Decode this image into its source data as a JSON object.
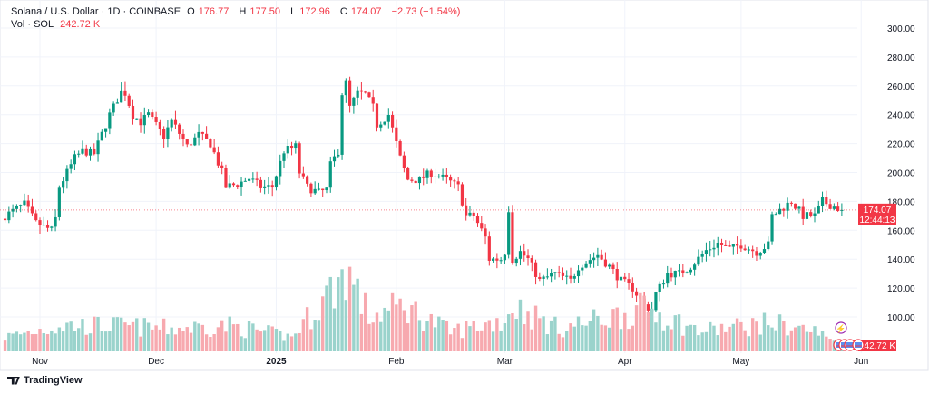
{
  "header": {
    "symbol": "Solana / U.S. Dollar · 1D · COINBASE",
    "o_label": "O",
    "o": "176.77",
    "h_label": "H",
    "h": "177.50",
    "l_label": "L",
    "l": "172.96",
    "c_label": "C",
    "c": "174.07",
    "change": "−2.73 (−1.54%)",
    "vol_label": "Vol · SOL",
    "vol": "242.72 K"
  },
  "price_tag": {
    "price": "174.07",
    "countdown": "12:44:13"
  },
  "volume_tag": "242.72 K",
  "brand": "TradingView",
  "colors": {
    "up": "#089981",
    "down": "#f23645",
    "up_vol": "#9ad3cc",
    "down_vol": "#f7a9af",
    "grid": "#f0f3fa"
  },
  "chart_data": {
    "type": "candlestick",
    "title": "Solana / U.S. Dollar · 1D · COINBASE",
    "ylim": [
      88,
      306
    ],
    "y_ticks": [
      "300.00",
      "280.00",
      "260.00",
      "240.00",
      "220.00",
      "200.00",
      "180.00",
      "160.00",
      "140.00",
      "120.00",
      "100.00"
    ],
    "x_ticks": [
      {
        "date": "2024-11-01",
        "label": "Nov"
      },
      {
        "date": "2024-12-01",
        "label": "Dec"
      },
      {
        "date": "2025-01-01",
        "label": "2025"
      },
      {
        "date": "2025-02-01",
        "label": "Feb"
      },
      {
        "date": "2025-03-01",
        "label": "Mar"
      },
      {
        "date": "2025-04-01",
        "label": "Apr"
      },
      {
        "date": "2025-05-01",
        "label": "May"
      },
      {
        "date": "2025-06-01",
        "label": "Jun"
      }
    ],
    "grid": true,
    "last_price": 174.07,
    "close_path": [
      [
        "2024-10-23",
        170
      ],
      [
        "2024-10-28",
        178
      ],
      [
        "2024-10-31",
        165
      ],
      [
        "2024-11-04",
        160
      ],
      [
        "2024-11-05",
        168
      ],
      [
        "2024-11-06",
        190
      ],
      [
        "2024-11-10",
        210
      ],
      [
        "2024-11-12",
        215
      ],
      [
        "2024-11-15",
        213
      ],
      [
        "2024-11-19",
        240
      ],
      [
        "2024-11-22",
        256
      ],
      [
        "2024-11-23",
        255
      ],
      [
        "2024-11-25",
        240
      ],
      [
        "2024-11-27",
        235
      ],
      [
        "2024-11-29",
        240
      ],
      [
        "2024-12-03",
        225
      ],
      [
        "2024-12-05",
        236
      ],
      [
        "2024-12-09",
        218
      ],
      [
        "2024-12-12",
        226
      ],
      [
        "2024-12-15",
        220
      ],
      [
        "2024-12-18",
        200
      ],
      [
        "2024-12-19",
        190
      ],
      [
        "2024-12-22",
        192
      ],
      [
        "2024-12-25",
        196
      ],
      [
        "2024-12-28",
        190
      ],
      [
        "2024-12-31",
        190
      ],
      [
        "2025-01-03",
        215
      ],
      [
        "2025-01-06",
        218
      ],
      [
        "2025-01-07",
        200
      ],
      [
        "2025-01-09",
        190
      ],
      [
        "2025-01-12",
        186
      ],
      [
        "2025-01-14",
        188
      ],
      [
        "2025-01-15",
        205
      ],
      [
        "2025-01-17",
        215
      ],
      [
        "2025-01-18",
        255
      ],
      [
        "2025-01-19",
        262
      ],
      [
        "2025-01-20",
        245
      ],
      [
        "2025-01-22",
        255
      ],
      [
        "2025-01-24",
        254
      ],
      [
        "2025-01-26",
        245
      ],
      [
        "2025-01-27",
        233
      ],
      [
        "2025-01-30",
        240
      ],
      [
        "2025-02-02",
        210
      ],
      [
        "2025-02-04",
        195
      ],
      [
        "2025-02-07",
        195
      ],
      [
        "2025-02-10",
        200
      ],
      [
        "2025-02-14",
        195
      ],
      [
        "2025-02-17",
        190
      ],
      [
        "2025-02-19",
        170
      ],
      [
        "2025-02-21",
        170
      ],
      [
        "2025-02-24",
        155
      ],
      [
        "2025-02-25",
        140
      ],
      [
        "2025-02-28",
        140
      ],
      [
        "2025-03-01",
        145
      ],
      [
        "2025-03-02",
        175
      ],
      [
        "2025-03-03",
        140
      ],
      [
        "2025-03-05",
        145
      ],
      [
        "2025-03-07",
        140
      ],
      [
        "2025-03-10",
        125
      ],
      [
        "2025-03-14",
        130
      ],
      [
        "2025-03-18",
        125
      ],
      [
        "2025-03-20",
        135
      ],
      [
        "2025-03-25",
        143
      ],
      [
        "2025-03-28",
        135
      ],
      [
        "2025-03-31",
        125
      ],
      [
        "2025-04-03",
        120
      ],
      [
        "2025-04-06",
        108
      ],
      [
        "2025-04-08",
        105
      ],
      [
        "2025-04-09",
        116
      ],
      [
        "2025-04-12",
        130
      ],
      [
        "2025-04-15",
        130
      ],
      [
        "2025-04-18",
        135
      ],
      [
        "2025-04-22",
        146
      ],
      [
        "2025-04-25",
        151
      ],
      [
        "2025-04-28",
        147
      ],
      [
        "2025-05-01",
        150
      ],
      [
        "2025-05-05",
        145
      ],
      [
        "2025-05-08",
        150
      ],
      [
        "2025-05-09",
        170
      ],
      [
        "2025-05-12",
        176
      ],
      [
        "2025-05-14",
        180
      ],
      [
        "2025-05-17",
        170
      ],
      [
        "2025-05-20",
        170
      ],
      [
        "2025-05-22",
        180
      ],
      [
        "2025-05-27",
        174.07
      ]
    ],
    "volume_path_k": [
      [
        "2024-10-23",
        500
      ],
      [
        "2024-11-06",
        900
      ],
      [
        "2024-11-20",
        900
      ],
      [
        "2024-12-05",
        800
      ],
      [
        "2024-12-20",
        900
      ],
      [
        "2025-01-05",
        500
      ],
      [
        "2025-01-18",
        2600
      ],
      [
        "2025-01-19",
        2900
      ],
      [
        "2025-01-25",
        1200
      ],
      [
        "2025-02-03",
        1600
      ],
      [
        "2025-02-15",
        700
      ],
      [
        "2025-03-01",
        1100
      ],
      [
        "2025-03-03",
        1600
      ],
      [
        "2025-03-15",
        800
      ],
      [
        "2025-04-07",
        1500
      ],
      [
        "2025-04-20",
        700
      ],
      [
        "2025-05-09",
        1000
      ],
      [
        "2025-05-20",
        700
      ],
      [
        "2025-05-27",
        242.72
      ]
    ]
  }
}
